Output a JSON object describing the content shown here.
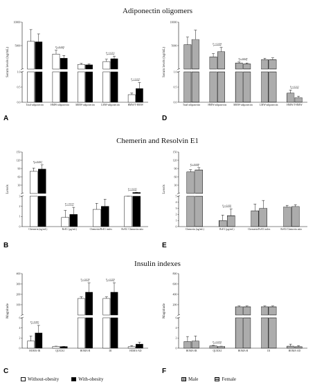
{
  "titles": {
    "adiponectin": "Adiponectin oligomers",
    "chemerin": "Chemerin and Resolvin E1",
    "insulin": "Insulin indexes"
  },
  "legend": {
    "obesity": [
      "Without-obesity",
      "With-obesity"
    ],
    "sex": [
      "Male",
      "Female"
    ]
  },
  "chart_data": [
    {
      "panel": "A",
      "type": "bar",
      "ylabel": "Serum levels (ng/mL)",
      "categories": [
        "Total-adiponectin",
        "HMW-adiponectin",
        "MMW-adiponectin",
        "LMW-adiponectin",
        "HMW/T-HMW"
      ],
      "series": [
        {
          "name": "Without-obesity",
          "values": [
            5900,
            3200,
            1000,
            1600,
            0.25
          ],
          "errors": [
            2500,
            800,
            200,
            500,
            0.05
          ]
        },
        {
          "name": "With-obesity",
          "values": [
            5800,
            2300,
            900,
            2200,
            0.45
          ],
          "errors": [
            1700,
            600,
            200,
            500,
            0.2
          ]
        }
      ],
      "ylim_upper": [
        0,
        10000
      ],
      "yticks_upper": [
        "0",
        "5000",
        "10000"
      ],
      "ylim_lower": [
        0,
        1.0
      ],
      "yticks_lower": [
        "0.0",
        "0.5",
        "1.0"
      ],
      "significance": [
        {
          "between": [
            1,
            1
          ],
          "label": "P = 0.019"
        },
        {
          "between": [
            3,
            3
          ],
          "label": "P = 0.031"
        },
        {
          "between": [
            4,
            4
          ],
          "label": "P = 0.025"
        }
      ]
    },
    {
      "panel": "D",
      "type": "bar",
      "ylabel": "Serum levels (ng/mL)",
      "categories": [
        "Total-adiponectin",
        "HMW-adiponectin",
        "MMW-adiponectin",
        "LMW-adiponectin",
        "HMW/T-HMW"
      ],
      "series": [
        {
          "name": "Male",
          "values": [
            5200,
            2600,
            1300,
            2000,
            0.3
          ],
          "errors": [
            1600,
            700,
            200,
            300,
            0.1
          ]
        },
        {
          "name": "Female",
          "values": [
            6300,
            3700,
            1100,
            2000,
            0.15
          ],
          "errors": [
            2000,
            900,
            200,
            400,
            0.05
          ]
        }
      ],
      "ylim_upper": [
        0,
        10000
      ],
      "yticks_upper": [
        "0",
        "5000",
        "10000"
      ],
      "ylim_lower": [
        0,
        1.0
      ],
      "yticks_lower": [
        "0.0",
        "0.5",
        "1.0"
      ],
      "significance": [
        {
          "between": [
            1,
            1
          ],
          "label": "P = 0.004"
        },
        {
          "between": [
            2,
            2
          ],
          "label": "P = 0.040"
        },
        {
          "between": [
            4,
            4
          ],
          "label": "P = 0.012"
        }
      ]
    },
    {
      "panel": "B",
      "type": "bar",
      "ylabel": "Levels",
      "categories": [
        "Chemerin (ng/mL)",
        "RvE1 (µg/mL)",
        "Chemerin/RvE1 index",
        "RvE1/ Chemerin ratio"
      ],
      "series": [
        {
          "name": "Without-obesity",
          "values": [
            80,
            0.9,
            1.7,
            3.0
          ],
          "errors": [
            12,
            0.7,
            0.6,
            0.3
          ]
        },
        {
          "name": "With-obesity",
          "values": [
            88,
            1.2,
            2.0,
            3.5
          ],
          "errors": [
            15,
            0.7,
            0.7,
            0.4
          ]
        }
      ],
      "ylim_upper": [
        0,
        150
      ],
      "yticks_upper": [
        "0",
        "30",
        "60",
        "90",
        "120",
        "150"
      ],
      "ylim_lower": [
        0,
        3
      ],
      "yticks_lower": [
        "0",
        "1",
        "2",
        "3"
      ],
      "significance": [
        {
          "between": [
            0,
            0
          ],
          "label": "P = 0.017"
        },
        {
          "between": [
            1,
            1
          ],
          "label": "P = 0.013"
        },
        {
          "between": [
            3,
            3
          ],
          "label": "P = 0.035"
        }
      ]
    },
    {
      "panel": "E",
      "type": "bar",
      "ylabel": "Levels",
      "categories": [
        "Chemerin (ng/mL)",
        "RvE1 (µg/mL)",
        "Chemerin/RvE1 index",
        "RvE1/Chemerin ratio"
      ],
      "series": [
        {
          "name": "Male",
          "values": [
            78,
            1.0,
            2.6,
            3.2
          ],
          "errors": [
            8,
            0.9,
            1.1,
            0.3
          ]
        },
        {
          "name": "Female",
          "values": [
            85,
            1.8,
            3.0,
            3.3
          ],
          "errors": [
            8,
            1.1,
            1.3,
            0.3
          ]
        }
      ],
      "ylim_upper": [
        0,
        150
      ],
      "yticks_upper": [
        "0",
        "30",
        "60",
        "90",
        "120",
        "150"
      ],
      "ylim_lower": [
        0,
        5
      ],
      "yticks_lower": [
        "0",
        "1",
        "2",
        "3",
        "4",
        "5"
      ],
      "significance": [
        {
          "between": [
            0,
            0
          ],
          "label": "P = 0.038"
        },
        {
          "between": [
            1,
            1
          ],
          "label": "P = 0.002"
        }
      ]
    },
    {
      "panel": "C",
      "type": "bar",
      "ylabel": "Magnitude",
      "categories": [
        "HOMA-IR",
        "QUICKI",
        "HOMA-B",
        "DI",
        "HOMA-AD"
      ],
      "series": [
        {
          "name": "Without-obesity",
          "values": [
            1.4,
            0.35,
            160,
            160,
            0.3
          ],
          "errors": [
            1.0,
            0.05,
            15,
            15,
            0.2
          ]
        },
        {
          "name": "With-obesity",
          "values": [
            3.0,
            0.32,
            220,
            220,
            0.8
          ],
          "errors": [
            1.5,
            0.03,
            90,
            90,
            0.4
          ]
        }
      ],
      "ylim_upper": [
        0,
        400
      ],
      "yticks_upper": [
        "0",
        "100",
        "200",
        "300",
        "400"
      ],
      "ylim_lower": [
        0,
        6
      ],
      "yticks_lower": [
        "0",
        "2",
        "4",
        "6"
      ],
      "significance": [
        {
          "between": [
            0,
            0
          ],
          "label": "P < 0.001"
        },
        {
          "between": [
            2,
            2
          ],
          "label": "P = 0.038"
        },
        {
          "between": [
            3,
            3
          ],
          "label": "P = 0.029"
        }
      ]
    },
    {
      "panel": "F",
      "type": "bar",
      "ylabel": "Magnitude",
      "categories": [
        "HOMA-IR",
        "QUICKI",
        "HOMA-B",
        "DI",
        "HOMA-AD"
      ],
      "series": [
        {
          "name": "Male",
          "values": [
            1.3,
            0.45,
            160,
            160,
            0.4
          ],
          "errors": [
            1.0,
            0.1,
            15,
            15,
            0.4
          ]
        },
        {
          "name": "Female",
          "values": [
            1.4,
            0.35,
            160,
            160,
            0.3
          ],
          "errors": [
            1.0,
            0.05,
            15,
            15,
            0.2
          ]
        }
      ],
      "ylim_upper": [
        0,
        800
      ],
      "yticks_upper": [
        "0",
        "200",
        "400",
        "600",
        "800"
      ],
      "ylim_lower": [
        0,
        6
      ],
      "yticks_lower": [
        "0",
        "2",
        "4",
        "6"
      ],
      "significance": [
        {
          "between": [
            1,
            1
          ],
          "label": "P = 0.032"
        }
      ]
    }
  ]
}
